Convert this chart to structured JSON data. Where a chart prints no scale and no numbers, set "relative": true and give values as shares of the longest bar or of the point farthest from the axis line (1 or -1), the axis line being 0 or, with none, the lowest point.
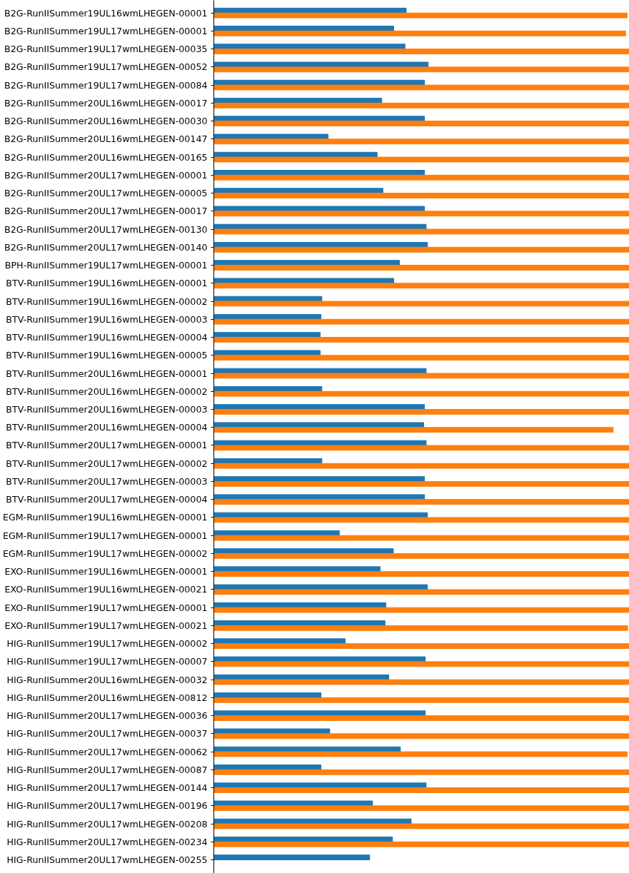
{
  "chart_data": {
    "type": "bar",
    "orientation": "horizontal",
    "relative": true,
    "grid": false,
    "categories": [
      "B2G-RunIISummer19UL16wmLHEGEN-00001",
      "B2G-RunIISummer19UL17wmLHEGEN-00001",
      "B2G-RunIISummer19UL17wmLHEGEN-00035",
      "B2G-RunIISummer19UL17wmLHEGEN-00052",
      "B2G-RunIISummer19UL17wmLHEGEN-00084",
      "B2G-RunIISummer20UL16wmLHEGEN-00017",
      "B2G-RunIISummer20UL16wmLHEGEN-00030",
      "B2G-RunIISummer20UL16wmLHEGEN-00147",
      "B2G-RunIISummer20UL16wmLHEGEN-00165",
      "B2G-RunIISummer20UL17wmLHEGEN-00001",
      "B2G-RunIISummer20UL17wmLHEGEN-00005",
      "B2G-RunIISummer20UL17wmLHEGEN-00017",
      "B2G-RunIISummer20UL17wmLHEGEN-00130",
      "B2G-RunIISummer20UL17wmLHEGEN-00140",
      "BPH-RunIISummer19UL17wmLHEGEN-00001",
      "BTV-RunIISummer19UL16wmLHEGEN-00001",
      "BTV-RunIISummer19UL16wmLHEGEN-00002",
      "BTV-RunIISummer19UL16wmLHEGEN-00003",
      "BTV-RunIISummer19UL16wmLHEGEN-00004",
      "BTV-RunIISummer19UL16wmLHEGEN-00005",
      "BTV-RunIISummer20UL16wmLHEGEN-00001",
      "BTV-RunIISummer20UL16wmLHEGEN-00002",
      "BTV-RunIISummer20UL16wmLHEGEN-00003",
      "BTV-RunIISummer20UL16wmLHEGEN-00004",
      "BTV-RunIISummer20UL17wmLHEGEN-00001",
      "BTV-RunIISummer20UL17wmLHEGEN-00002",
      "BTV-RunIISummer20UL17wmLHEGEN-00003",
      "BTV-RunIISummer20UL17wmLHEGEN-00004",
      "EGM-RunIISummer19UL16wmLHEGEN-00001",
      "EGM-RunIISummer19UL17wmLHEGEN-00001",
      "EGM-RunIISummer19UL17wmLHEGEN-00002",
      "EXO-RunIISummer19UL16wmLHEGEN-00001",
      "EXO-RunIISummer19UL16wmLHEGEN-00021",
      "EXO-RunIISummer19UL17wmLHEGEN-00001",
      "EXO-RunIISummer19UL17wmLHEGEN-00021",
      "HIG-RunIISummer19UL17wmLHEGEN-00002",
      "HIG-RunIISummer19UL17wmLHEGEN-00007",
      "HIG-RunIISummer20UL16wmLHEGEN-00032",
      "HIG-RunIISummer20UL16wmLHEGEN-00812",
      "HIG-RunIISummer20UL17wmLHEGEN-00036",
      "HIG-RunIISummer20UL17wmLHEGEN-00037",
      "HIG-RunIISummer20UL17wmLHEGEN-00062",
      "HIG-RunIISummer20UL17wmLHEGEN-00087",
      "HIG-RunIISummer20UL17wmLHEGEN-00144",
      "HIG-RunIISummer20UL17wmLHEGEN-00196",
      "HIG-RunIISummer20UL17wmLHEGEN-00208",
      "HIG-RunIISummer20UL17wmLHEGEN-00234",
      "HIG-RunIISummer20UL17wmLHEGEN-00255"
    ],
    "series": [
      {
        "color": "#1f77b4",
        "values": [
          0.463,
          0.433,
          0.46,
          0.516,
          0.507,
          0.404,
          0.507,
          0.275,
          0.393,
          0.507,
          0.407,
          0.507,
          0.511,
          0.514,
          0.447,
          0.433,
          0.26,
          0.258,
          0.256,
          0.256,
          0.511,
          0.26,
          0.507,
          0.505,
          0.511,
          0.26,
          0.507,
          0.507,
          0.514,
          0.302,
          0.432,
          0.4,
          0.514,
          0.414,
          0.412,
          0.316,
          0.509,
          0.421,
          0.258,
          0.509,
          0.279,
          0.449,
          0.258,
          0.511,
          0.382,
          0.475,
          0.43,
          0.375
        ]
      },
      {
        "color": "#ff7f0e",
        "values": [
          0.995,
          0.991,
          1,
          1,
          1,
          1,
          1,
          1,
          1,
          1,
          1,
          1,
          1,
          1,
          1,
          1,
          1,
          1,
          1,
          1,
          1,
          1,
          1,
          0.961,
          1,
          1,
          1,
          1,
          1,
          1,
          1,
          1,
          1,
          1,
          0.996,
          1,
          1,
          1,
          1,
          1,
          1,
          0.995,
          1,
          1,
          1,
          1,
          1,
          null
        ]
      }
    ]
  }
}
